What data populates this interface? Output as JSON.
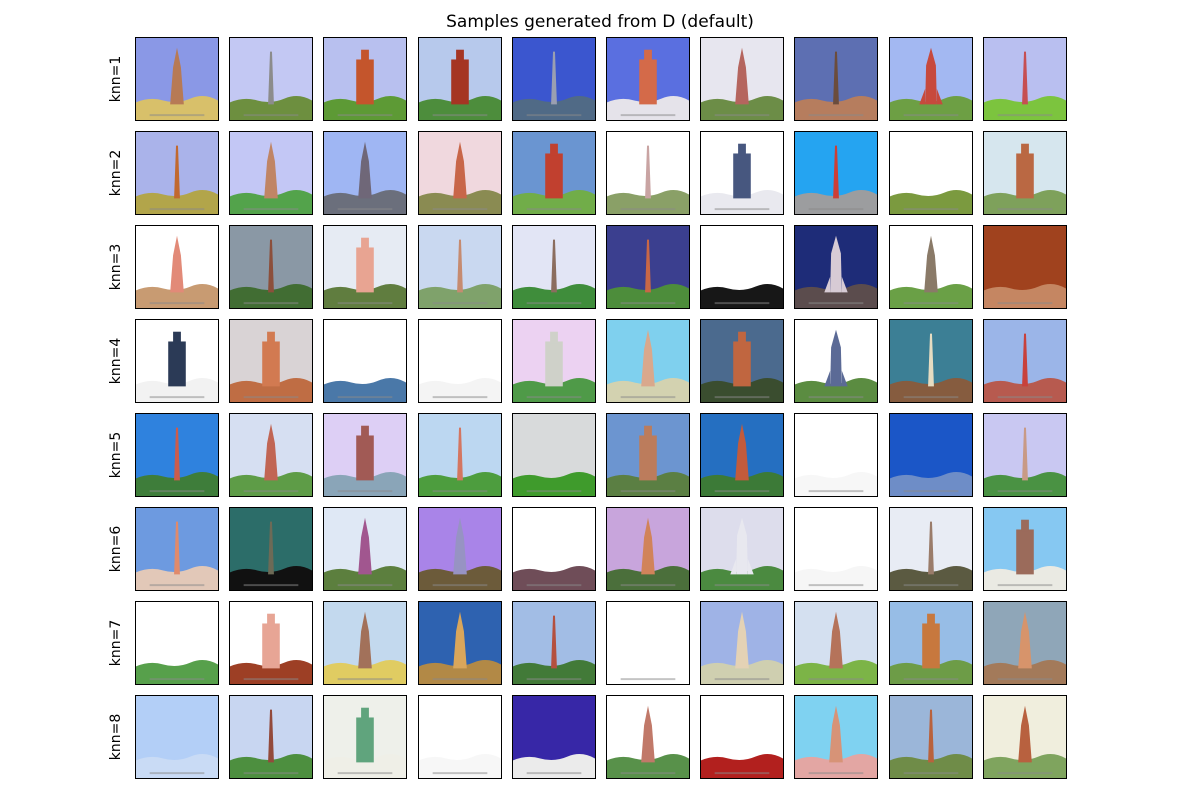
{
  "figure": {
    "title": "Samples generated from D (default)",
    "row_labels": [
      "knn=1",
      "knn=2",
      "knn=3",
      "knn=4",
      "knn=5",
      "knn=6",
      "knn=7",
      "knn=8"
    ],
    "columns_per_row": 10
  },
  "rows": [
    [
      {
        "sky": "#8a98e6",
        "ground": "#d8c06a",
        "tower": "#b77a55",
        "tower_shape": "spire"
      },
      {
        "sky": "#c3c8f3",
        "ground": "#6d8f3f",
        "tower": "#8c8c8c",
        "tower_shape": "needle"
      },
      {
        "sky": "#b8c0ef",
        "ground": "#5d9a35",
        "tower": "#c4552c",
        "tower_shape": "block"
      },
      {
        "sky": "#b7c9ec",
        "ground": "#4d8d3c",
        "tower": "#a53523",
        "tower_shape": "block"
      },
      {
        "sky": "#3b56cf",
        "ground": "#506a86",
        "tower": "#9a9fb1",
        "tower_shape": "needle"
      },
      {
        "sky": "#5a6fe0",
        "ground": "#e5e3ea",
        "tower": "#d46a49",
        "tower_shape": "block"
      },
      {
        "sky": "#e7e6ef",
        "ground": "#6c8d47",
        "tower": "#b5655e",
        "tower_shape": "spire"
      },
      {
        "sky": "#5d6fb2",
        "ground": "#b67d5e",
        "tower": "#6b4c3c",
        "tower_shape": "needle"
      },
      {
        "sky": "#a3b8f2",
        "ground": "#6d9f44",
        "tower": "#c7493d",
        "tower_shape": "rocket"
      },
      {
        "sky": "#b9bff0",
        "ground": "#7cc43e",
        "tower": "#c64f52",
        "tower_shape": "needle"
      }
    ],
    [
      {
        "sky": "#aab3ea",
        "ground": "#b2a54a",
        "tower": "#c1692f",
        "tower_shape": "needle"
      },
      {
        "sky": "#c3c7f5",
        "ground": "#53a34b",
        "tower": "#c08565",
        "tower_shape": "spire"
      },
      {
        "sky": "#9fb6f3",
        "ground": "#6b6f7c",
        "tower": "#6f6778",
        "tower_shape": "spire"
      },
      {
        "sky": "#f0d8de",
        "ground": "#8a8b52",
        "tower": "#c86649",
        "tower_shape": "spire"
      },
      {
        "sky": "#6a95d1",
        "ground": "#71ad49",
        "tower": "#c1402f",
        "tower_shape": "block"
      },
      {
        "sky": "#ffffff",
        "ground": "#8aa067",
        "tower": "#c9a4a3",
        "tower_shape": "needle"
      },
      {
        "sky": "#ffffff",
        "ground": "#e9e9ef",
        "tower": "#47577f",
        "tower_shape": "block"
      },
      {
        "sky": "#25a4f1",
        "ground": "#9c9d9f",
        "tower": "#cc3e35",
        "tower_shape": "needle"
      },
      {
        "sky": "#ffffff",
        "ground": "#7b9a3f",
        "tower": "#ffffff",
        "tower_shape": "none"
      },
      {
        "sky": "#d6e6ee",
        "ground": "#7ea15b",
        "tower": "#ba6843",
        "tower_shape": "block"
      }
    ],
    [
      {
        "sky": "#ffffff",
        "ground": "#c89b72",
        "tower": "#e28a78",
        "tower_shape": "spire"
      },
      {
        "sky": "#8a98a5",
        "ground": "#416d33",
        "tower": "#8c4f3b",
        "tower_shape": "needle"
      },
      {
        "sky": "#e6ebf3",
        "ground": "#607d3f",
        "tower": "#e8a492",
        "tower_shape": "block"
      },
      {
        "sky": "#c9d8f0",
        "ground": "#7fa26b",
        "tower": "#c68b70",
        "tower_shape": "needle"
      },
      {
        "sky": "#e2e5f5",
        "ground": "#3f8d3b",
        "tower": "#8b6d5e",
        "tower_shape": "needle"
      },
      {
        "sky": "#3b3f8f",
        "ground": "#4d8d3b",
        "tower": "#c86746",
        "tower_shape": "needle"
      },
      {
        "sky": "#ffffff",
        "ground": "#171717",
        "tower": "#ffffff",
        "tower_shape": "none"
      },
      {
        "sky": "#1e2c78",
        "ground": "#5b4c4d",
        "tower": "#d7cbd5",
        "tower_shape": "rocket"
      },
      {
        "sky": "#ffffff",
        "ground": "#6aa046",
        "tower": "#8a7a68",
        "tower_shape": "spire"
      },
      {
        "sky": "#a0421e",
        "ground": "#c58662",
        "tower": "#d9c4b6",
        "tower_shape": "none"
      }
    ],
    [
      {
        "sky": "#ffffff",
        "ground": "#f2f2f2",
        "tower": "#2b3a56",
        "tower_shape": "block"
      },
      {
        "sky": "#d9d3d5",
        "ground": "#bf6d44",
        "tower": "#d27a51",
        "tower_shape": "block"
      },
      {
        "sky": "#ffffff",
        "ground": "#4a78a8",
        "tower": "#ffffff",
        "tower_shape": "none"
      },
      {
        "sky": "#ffffff",
        "ground": "#f4f4f4",
        "tower": "#dddddd",
        "tower_shape": "none"
      },
      {
        "sky": "#ecd2f2",
        "ground": "#4f9a48",
        "tower": "#cfd1c9",
        "tower_shape": "block"
      },
      {
        "sky": "#7fd0ee",
        "ground": "#d3d2b0",
        "tower": "#d9a88c",
        "tower_shape": "spire"
      },
      {
        "sky": "#4b6a8e",
        "ground": "#3a4d2f",
        "tower": "#c06640",
        "tower_shape": "block"
      },
      {
        "sky": "#ffffff",
        "ground": "#5b8c41",
        "tower": "#5b6a96",
        "tower_shape": "rocket"
      },
      {
        "sky": "#3c7f95",
        "ground": "#865c3f",
        "tower": "#e6dcc1",
        "tower_shape": "needle"
      },
      {
        "sky": "#9bb5e8",
        "ground": "#b75a4f",
        "tower": "#c8413c",
        "tower_shape": "needle"
      }
    ],
    [
      {
        "sky": "#2f82de",
        "ground": "#3e7d3a",
        "tower": "#cc5c4b",
        "tower_shape": "needle"
      },
      {
        "sky": "#d6dff2",
        "ground": "#5e9c47",
        "tower": "#c16554",
        "tower_shape": "spire"
      },
      {
        "sky": "#ddcff5",
        "ground": "#8aa5b8",
        "tower": "#a15a55",
        "tower_shape": "block"
      },
      {
        "sky": "#bcd7f1",
        "ground": "#4d9d3e",
        "tower": "#d47661",
        "tower_shape": "needle"
      },
      {
        "sky": "#d8dadb",
        "ground": "#3f9b2c",
        "tower": "#8a6c5e",
        "tower_shape": "none"
      },
      {
        "sky": "#6c95d0",
        "ground": "#5b7f43",
        "tower": "#bc7c5c",
        "tower_shape": "block"
      },
      {
        "sky": "#256fc1",
        "ground": "#3c7a37",
        "tower": "#c25b3c",
        "tower_shape": "spire"
      },
      {
        "sky": "#ffffff",
        "ground": "#f7f7f7",
        "tower": "#ffffff",
        "tower_shape": "none"
      },
      {
        "sky": "#1b56c7",
        "ground": "#6e8dc7",
        "tower": "#ffffff",
        "tower_shape": "none"
      },
      {
        "sky": "#c9c8f2",
        "ground": "#4a9243",
        "tower": "#c89a86",
        "tower_shape": "needle"
      }
    ],
    [
      {
        "sky": "#6d9ae0",
        "ground": "#e2c8b8",
        "tower": "#e08a6b",
        "tower_shape": "needle"
      },
      {
        "sky": "#2c6d69",
        "ground": "#111111",
        "tower": "#6d6a56",
        "tower_shape": "needle"
      },
      {
        "sky": "#dfe8f5",
        "ground": "#5c7f3e",
        "tower": "#a1568f",
        "tower_shape": "spire"
      },
      {
        "sky": "#a984e8",
        "ground": "#6c5b3a",
        "tower": "#9793c3",
        "tower_shape": "spire"
      },
      {
        "sky": "#ffffff",
        "ground": "#6f4d58",
        "tower": "#ffffff",
        "tower_shape": "none"
      },
      {
        "sky": "#c8a5dc",
        "ground": "#4b6f3b",
        "tower": "#d1835a",
        "tower_shape": "spire"
      },
      {
        "sky": "#ddddec",
        "ground": "#4b8a40",
        "tower": "#e8e8ef",
        "tower_shape": "rocket"
      },
      {
        "sky": "#ffffff",
        "ground": "#f6f6f6",
        "tower": "#ffffff",
        "tower_shape": "none"
      },
      {
        "sky": "#e8ecf4",
        "ground": "#5b5a41",
        "tower": "#9a7c6a",
        "tower_shape": "needle"
      },
      {
        "sky": "#86c8f2",
        "ground": "#eaeae3",
        "tower": "#9b6b5b",
        "tower_shape": "block"
      }
    ],
    [
      {
        "sky": "#ffffff",
        "ground": "#57a04b",
        "tower": "#ffffff",
        "tower_shape": "none"
      },
      {
        "sky": "#ffffff",
        "ground": "#9d3f25",
        "tower": "#e7a595",
        "tower_shape": "block"
      },
      {
        "sky": "#c3d9ee",
        "ground": "#e0cc62",
        "tower": "#a2715a",
        "tower_shape": "spire"
      },
      {
        "sky": "#2e62b0",
        "ground": "#b28946",
        "tower": "#d9a65b",
        "tower_shape": "spire"
      },
      {
        "sky": "#a2bde5",
        "ground": "#427a38",
        "tower": "#b4503f",
        "tower_shape": "needle"
      },
      {
        "sky": "#ffffff",
        "ground": "#ffffff",
        "tower": "#c9c9c9",
        "tower_shape": "none"
      },
      {
        "sky": "#9fb3e6",
        "ground": "#cfcfb0",
        "tower": "#e4d2b5",
        "tower_shape": "spire"
      },
      {
        "sky": "#d4e0f0",
        "ground": "#7cb447",
        "tower": "#b5735a",
        "tower_shape": "spire"
      },
      {
        "sky": "#97bde6",
        "ground": "#6d9c47",
        "tower": "#c7783e",
        "tower_shape": "block"
      },
      {
        "sky": "#8fa6b8",
        "ground": "#a37a5a",
        "tower": "#d7946b",
        "tower_shape": "spire"
      }
    ],
    [
      {
        "sky": "#b3cff7",
        "ground": "#c9dbf5",
        "tower": "#ffffff",
        "tower_shape": "none"
      },
      {
        "sky": "#c8d6f1",
        "ground": "#4d8f3f",
        "tower": "#934a3c",
        "tower_shape": "needle"
      },
      {
        "sky": "#eef0ea",
        "ground": "#efefe7",
        "tower": "#60a47d",
        "tower_shape": "block"
      },
      {
        "sky": "#ffffff",
        "ground": "#f7f7f7",
        "tower": "#dddddd",
        "tower_shape": "none"
      },
      {
        "sky": "#3727a7",
        "ground": "#ebebeb",
        "tower": "#ffffff",
        "tower_shape": "none"
      },
      {
        "sky": "#ffffff",
        "ground": "#58914a",
        "tower": "#c17969",
        "tower_shape": "spire"
      },
      {
        "sky": "#ffffff",
        "ground": "#b2201e",
        "tower": "#ffffff",
        "tower_shape": "none"
      },
      {
        "sky": "#7fd2f1",
        "ground": "#e3a6a3",
        "tower": "#d79377",
        "tower_shape": "spire"
      },
      {
        "sky": "#9bb6d9",
        "ground": "#6f8c48",
        "tower": "#b9623d",
        "tower_shape": "needle"
      },
      {
        "sky": "#f0eedd",
        "ground": "#7fa45e",
        "tower": "#b8613f",
        "tower_shape": "spire"
      }
    ]
  ]
}
